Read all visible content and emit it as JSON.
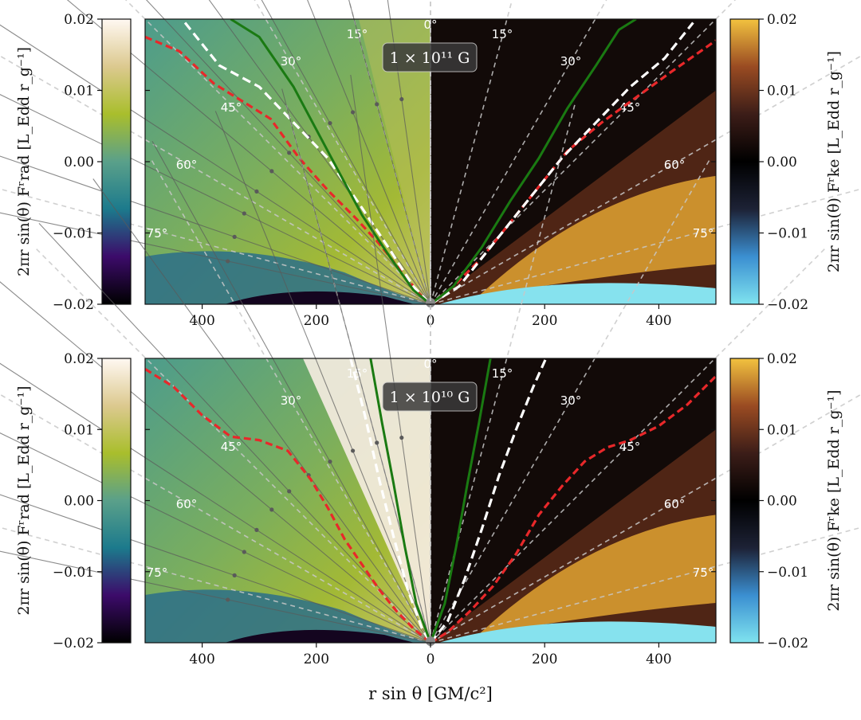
{
  "chart_data": [
    {
      "type": "heatmap",
      "panel": "top",
      "field_label": "1 × 10¹¹ G",
      "x_range": [
        -500,
        500
      ],
      "x_ticks": [
        "400",
        "200",
        "0",
        "200",
        "400"
      ],
      "left_colorbar": {
        "quantity": "2πr sin(θ) F^r_rad [L_Edd r_g^-1]",
        "label": "2πr sin(θ) Fʳrad [L_Edd r_g⁻¹]",
        "range": [
          -0.02,
          0.02
        ],
        "ticks": [
          "0.02",
          "0.01",
          "0.00",
          "−0.01",
          "−0.02"
        ],
        "colors": [
          "#000000",
          "#3c0b6a",
          "#1c7a8c",
          "#5aa08a",
          "#a9be2c",
          "#dcc98f",
          "#fff8f2"
        ]
      },
      "right_colorbar": {
        "quantity": "2πr sin(θ) F^r_ke [L_Edd r_g^-1]",
        "label": "2πr sin(θ) Fʳke [L_Edd r_g⁻¹]",
        "range": [
          -0.02,
          0.02
        ],
        "ticks": [
          "0.02",
          "0.01",
          "0.00",
          "−0.01",
          "−0.02"
        ],
        "colors": [
          "#7fe3ef",
          "#3b8fd1",
          "#1d2236",
          "#000000",
          "#3c1d18",
          "#9a4b22",
          "#f2c23f"
        ]
      },
      "angle_guides": [
        "0°",
        "15°",
        "30°",
        "45°",
        "60°",
        "75°"
      ],
      "curves": [
        {
          "name": "red dashed (left)",
          "style": "red-dashed",
          "x": [
            -500,
            -440,
            -380,
            -330,
            -280,
            -230,
            -180,
            -130,
            -90,
            -50,
            -20,
            0
          ],
          "y": [
            0.0175,
            0.0155,
            0.011,
            0.0085,
            0.006,
            0.0005,
            -0.004,
            -0.008,
            -0.0115,
            -0.0155,
            -0.0185,
            -0.02
          ]
        },
        {
          "name": "white dashed (left)",
          "style": "white-dashed",
          "x": [
            -430,
            -370,
            -300,
            -240,
            -180,
            -120,
            -70,
            -30,
            0
          ],
          "y": [
            0.0195,
            0.0135,
            0.0105,
            0.0055,
            0.0005,
            -0.0065,
            -0.0125,
            -0.0175,
            -0.02
          ]
        },
        {
          "name": "green solid (left)",
          "style": "green-solid",
          "x": [
            -350,
            -300,
            -240,
            -180,
            -120,
            -70,
            -30,
            0
          ],
          "y": [
            0.02,
            0.0175,
            0.0105,
            0.0015,
            -0.0075,
            -0.0135,
            -0.018,
            -0.02
          ]
        },
        {
          "name": "red dashed (right)",
          "style": "red-dashed",
          "x": [
            0,
            40,
            90,
            140,
            190,
            240,
            300,
            360,
            420,
            500
          ],
          "y": [
            -0.02,
            -0.0175,
            -0.0135,
            -0.0085,
            -0.0035,
            0.0015,
            0.0055,
            0.009,
            0.0125,
            0.017
          ]
        },
        {
          "name": "white dashed (right)",
          "style": "white-dashed",
          "x": [
            0,
            50,
            110,
            170,
            230,
            290,
            350,
            410,
            460
          ],
          "y": [
            -0.02,
            -0.0175,
            -0.0115,
            -0.0055,
            0.0005,
            0.0055,
            0.0105,
            0.0145,
            0.0195
          ]
        },
        {
          "name": "green solid (right)",
          "style": "green-solid",
          "x": [
            0,
            40,
            90,
            140,
            190,
            240,
            290,
            330,
            360
          ],
          "y": [
            -0.02,
            -0.0175,
            -0.012,
            -0.0055,
            0.0005,
            0.0075,
            0.0135,
            0.0185,
            0.02
          ]
        }
      ]
    },
    {
      "type": "heatmap",
      "panel": "bottom",
      "field_label": "1 × 10¹⁰ G",
      "x_range": [
        -500,
        500
      ],
      "x_ticks": [
        "400",
        "200",
        "0",
        "200",
        "400"
      ],
      "xlabel": "r sin θ [GM/c²]",
      "left_colorbar": {
        "quantity": "2πr sin(θ) F^r_rad [L_Edd r_g^-1]",
        "label": "2πr sin(θ) Fʳrad [L_Edd r_g⁻¹]",
        "range": [
          -0.02,
          0.02
        ],
        "ticks": [
          "0.02",
          "0.01",
          "0.00",
          "−0.01",
          "−0.02"
        ],
        "colors": [
          "#000000",
          "#3c0b6a",
          "#1c7a8c",
          "#5aa08a",
          "#a9be2c",
          "#dcc98f",
          "#fff8f2"
        ]
      },
      "right_colorbar": {
        "quantity": "2πr sin(θ) F^r_ke [L_Edd r_g^-1]",
        "label": "2πr sin(θ) Fʳke [L_Edd r_g⁻¹]",
        "range": [
          -0.02,
          0.02
        ],
        "ticks": [
          "0.02",
          "0.01",
          "0.00",
          "−0.01",
          "−0.02"
        ],
        "colors": [
          "#7fe3ef",
          "#3b8fd1",
          "#1d2236",
          "#000000",
          "#3c1d18",
          "#9a4b22",
          "#f2c23f"
        ]
      },
      "angle_guides": [
        "0°",
        "15°",
        "30°",
        "45°",
        "60°",
        "75°"
      ],
      "curves": [
        {
          "name": "red dashed (left)",
          "style": "red-dashed",
          "x": [
            -500,
            -450,
            -400,
            -350,
            -300,
            -250,
            -210,
            -180,
            -150,
            -120,
            -90,
            -60,
            -30,
            0
          ],
          "y": [
            0.0185,
            0.016,
            0.012,
            0.009,
            0.0085,
            0.007,
            0.003,
            -0.001,
            -0.0055,
            -0.009,
            -0.0125,
            -0.0155,
            -0.018,
            -0.02
          ]
        },
        {
          "name": "white dashed (left)",
          "style": "white-dashed",
          "x": [
            -140,
            -115,
            -90,
            -65,
            -40,
            -15,
            0
          ],
          "y": [
            0.02,
            0.012,
            0.003,
            -0.005,
            -0.0125,
            -0.018,
            -0.02
          ]
        },
        {
          "name": "green solid (left)",
          "style": "green-solid",
          "x": [
            -105,
            -85,
            -65,
            -45,
            -25,
            0
          ],
          "y": [
            0.02,
            0.011,
            0.0025,
            -0.0065,
            -0.0145,
            -0.02
          ]
        },
        {
          "name": "red dashed (right)",
          "style": "red-dashed",
          "x": [
            0,
            30,
            70,
            110,
            150,
            190,
            230,
            270,
            310,
            350,
            400,
            450,
            500
          ],
          "y": [
            -0.02,
            -0.0185,
            -0.0155,
            -0.012,
            -0.0075,
            -0.002,
            0.002,
            0.0055,
            0.0075,
            0.0085,
            0.0105,
            0.0135,
            0.0175
          ]
        },
        {
          "name": "white dashed (right)",
          "style": "white-dashed",
          "x": [
            0,
            30,
            60,
            90,
            120,
            150,
            180,
            205
          ],
          "y": [
            -0.02,
            -0.017,
            -0.011,
            -0.004,
            0.0035,
            0.01,
            0.016,
            0.0205
          ]
        },
        {
          "name": "green solid (right)",
          "style": "green-solid",
          "x": [
            0,
            25,
            45,
            65,
            85,
            105
          ],
          "y": [
            -0.02,
            -0.0145,
            -0.0065,
            0.0025,
            0.011,
            0.02
          ]
        }
      ]
    }
  ]
}
